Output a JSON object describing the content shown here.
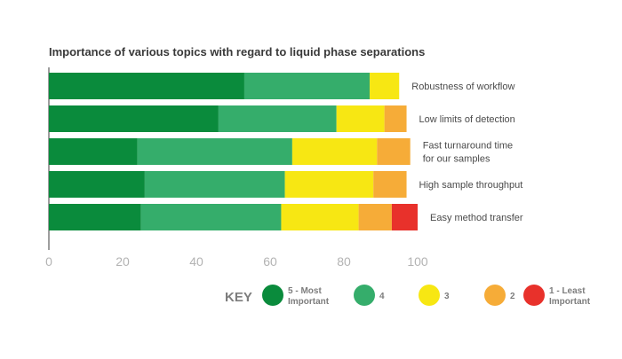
{
  "chart_data": {
    "type": "bar",
    "stacked": true,
    "orientation": "horizontal",
    "title": "Importance of various topics with regard to liquid phase separations",
    "categories": [
      [
        "Robustness of workflow"
      ],
      [
        "Low limits of detection"
      ],
      [
        "Fast turnaround time",
        "for our samples"
      ],
      [
        "High sample throughput"
      ],
      [
        "Easy method transfer"
      ]
    ],
    "series": [
      {
        "name": [
          "5 - Most",
          "Important"
        ],
        "color": "#0a8b3c",
        "values": [
          53,
          46,
          24,
          26,
          25
        ]
      },
      {
        "name": [
          "4"
        ],
        "color": "#35ad6b",
        "values": [
          34,
          32,
          42,
          38,
          38
        ]
      },
      {
        "name": [
          "3"
        ],
        "color": "#f7e713",
        "values": [
          8,
          13,
          23,
          24,
          21
        ]
      },
      {
        "name": [
          "2"
        ],
        "color": "#f6ac38",
        "values": [
          0,
          6,
          9,
          9,
          9
        ]
      },
      {
        "name": [
          "1 - Least",
          "Important"
        ],
        "color": "#e8312b",
        "values": [
          0,
          0,
          0,
          0,
          7
        ]
      }
    ],
    "xticks": [
      "0",
      "20",
      "40",
      "60",
      "80",
      "100"
    ],
    "xlim": [
      0,
      100
    ],
    "legend_title": "KEY",
    "legend_position": "bottom",
    "grid": false
  }
}
